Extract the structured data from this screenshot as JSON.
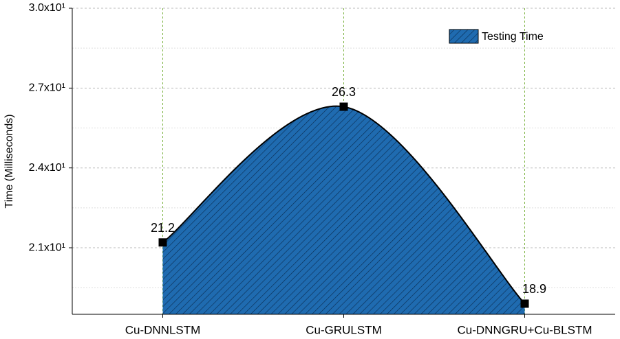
{
  "chart_data": {
    "type": "area",
    "categories": [
      "Cu-DNNLSTM",
      "Cu-GRULSTM",
      "Cu-DNNGRU+Cu-BLSTM"
    ],
    "series": [
      {
        "name": "Testing Time",
        "color": "#1f6bb0",
        "values": [
          21.2,
          26.3,
          18.9
        ]
      }
    ],
    "ylabel": "Time (Milliseconds)",
    "ylim": [
      18.5,
      30
    ],
    "yticks": [
      {
        "value": 21,
        "label": "2.1x10¹"
      },
      {
        "value": 24,
        "label": "2.4x10¹"
      },
      {
        "value": 27,
        "label": "2.7x10¹"
      },
      {
        "value": 30,
        "label": "3.0x10¹"
      }
    ],
    "minor_yticks": [
      19.5,
      22.5,
      25.5,
      28.5
    ],
    "grid": true,
    "legend": "top-right"
  }
}
